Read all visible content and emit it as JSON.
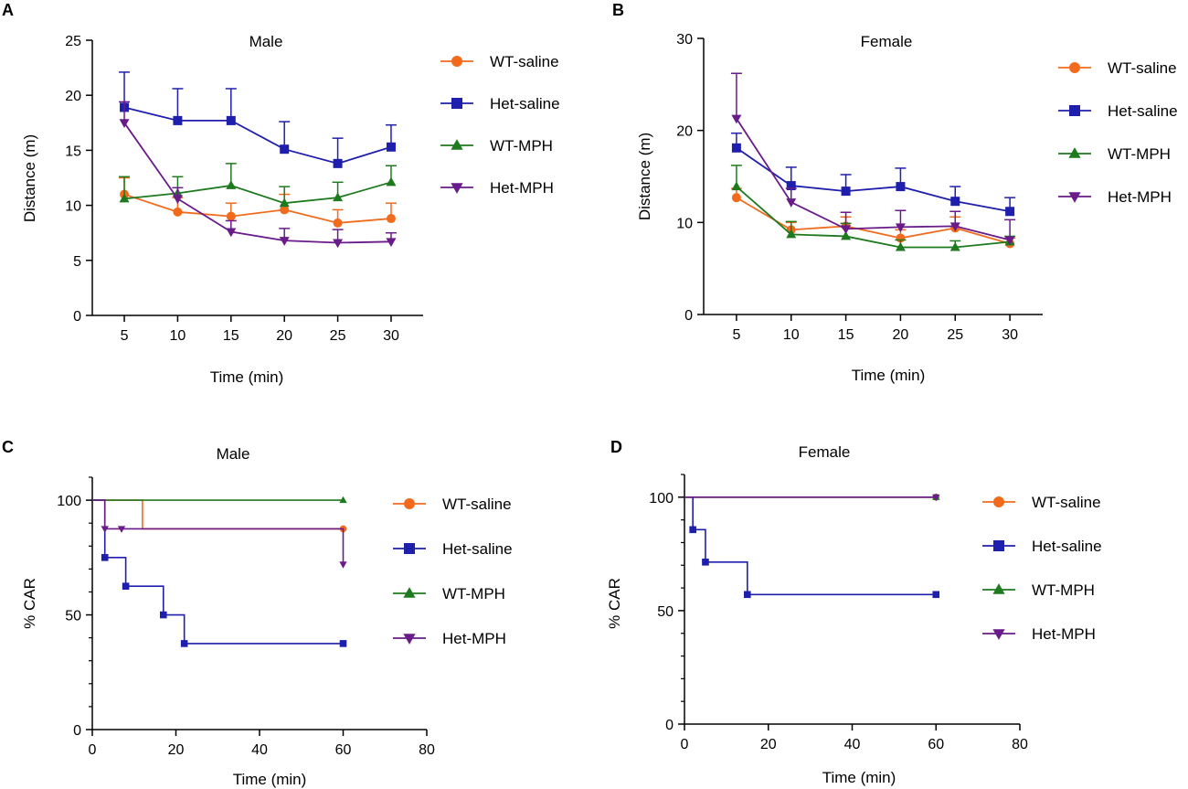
{
  "colors": {
    "WT-saline": "#F26B1D",
    "Het-saline": "#1F1FAE",
    "WT-MPH": "#1E7A1E",
    "Het-MPH": "#6A1B8A",
    "axis": "#000000"
  },
  "chart_data": [
    {
      "panel": "A",
      "type": "line",
      "title": "Male",
      "xlabel": "Time (min)",
      "ylabel": "Distance (m)",
      "x": [
        5,
        10,
        15,
        20,
        25,
        30
      ],
      "xlim": [
        2,
        33
      ],
      "ylim": [
        0,
        25
      ],
      "xticks": [
        5,
        10,
        15,
        20,
        25,
        30
      ],
      "yticks": [
        0,
        5,
        10,
        15,
        20,
        25
      ],
      "error_bars": true,
      "legend_position": "right",
      "series": [
        {
          "name": "WT-saline",
          "marker": "circle",
          "values": [
            11.0,
            9.4,
            9.0,
            9.6,
            8.4,
            8.8
          ],
          "errors": [
            1.5,
            1.3,
            1.2,
            1.4,
            1.2,
            1.4
          ]
        },
        {
          "name": "Het-saline",
          "marker": "square",
          "values": [
            18.9,
            17.7,
            17.7,
            15.1,
            13.8,
            15.3
          ],
          "errors": [
            3.2,
            2.9,
            2.9,
            2.5,
            2.3,
            2.0
          ]
        },
        {
          "name": "WT-MPH",
          "marker": "triangle-up",
          "values": [
            10.6,
            11.1,
            11.8,
            10.2,
            10.7,
            12.1
          ],
          "errors": [
            2.0,
            1.5,
            2.0,
            1.5,
            1.4,
            1.5
          ]
        },
        {
          "name": "Het-MPH",
          "marker": "triangle-down",
          "values": [
            17.5,
            10.6,
            7.6,
            6.8,
            6.6,
            6.7
          ],
          "errors": [
            1.9,
            1.0,
            1.0,
            1.1,
            1.2,
            0.8
          ]
        }
      ]
    },
    {
      "panel": "B",
      "type": "line",
      "title": "Female",
      "xlabel": "Time (min)",
      "ylabel": "Distance (m)",
      "x": [
        5,
        10,
        15,
        20,
        25,
        30
      ],
      "xlim": [
        2,
        33
      ],
      "ylim": [
        0,
        30
      ],
      "xticks": [
        5,
        10,
        15,
        20,
        25,
        30
      ],
      "yticks": [
        0,
        10,
        20,
        30
      ],
      "error_bars": true,
      "legend_position": "right",
      "series": [
        {
          "name": "WT-saline",
          "marker": "circle",
          "values": [
            12.7,
            9.2,
            9.6,
            8.3,
            9.4,
            7.7
          ],
          "errors": [
            1.0,
            0.8,
            1.0,
            0.9,
            1.2,
            0.6
          ]
        },
        {
          "name": "Het-saline",
          "marker": "square",
          "values": [
            18.1,
            14.0,
            13.4,
            13.9,
            12.3,
            11.2
          ],
          "errors": [
            1.6,
            2.0,
            1.8,
            2.0,
            1.6,
            1.5
          ]
        },
        {
          "name": "WT-MPH",
          "marker": "triangle-up",
          "values": [
            13.9,
            8.7,
            8.5,
            7.3,
            7.3,
            7.9
          ],
          "errors": [
            2.3,
            1.4,
            1.4,
            0.8,
            0.7,
            0.6
          ]
        },
        {
          "name": "Het-MPH",
          "marker": "triangle-down",
          "values": [
            21.3,
            12.2,
            9.3,
            9.5,
            9.6,
            8.1
          ],
          "errors": [
            4.9,
            1.5,
            1.8,
            1.8,
            1.6,
            2.2
          ]
        }
      ]
    },
    {
      "panel": "C",
      "type": "step",
      "title": "Male",
      "xlabel": "Time (min)",
      "ylabel": "% CAR",
      "xlim": [
        0,
        80
      ],
      "ylim": [
        0,
        110
      ],
      "xticks": [
        0,
        20,
        40,
        60,
        80
      ],
      "yticks": [
        0,
        50,
        100
      ],
      "legend_position": "right",
      "series": [
        {
          "name": "WT-saline",
          "marker": "circle",
          "x": [
            0,
            12,
            60
          ],
          "values": [
            100,
            87.5,
            87.5
          ],
          "censored": [
            {
              "x": 60,
              "y": 87.5
            }
          ]
        },
        {
          "name": "Het-saline",
          "marker": "square",
          "x": [
            0,
            3,
            8,
            17,
            22,
            60
          ],
          "values": [
            100,
            75,
            62.5,
            50,
            37.5,
            37.5
          ],
          "censored": [
            {
              "x": 3,
              "y": 75
            },
            {
              "x": 8,
              "y": 62.5
            },
            {
              "x": 17,
              "y": 50
            },
            {
              "x": 22,
              "y": 37.5
            },
            {
              "x": 60,
              "y": 37.5
            }
          ]
        },
        {
          "name": "WT-MPH",
          "marker": "triangle-up",
          "x": [
            0,
            60
          ],
          "values": [
            100,
            100
          ],
          "censored": [
            {
              "x": 60,
              "y": 100
            }
          ]
        },
        {
          "name": "Het-MPH",
          "marker": "triangle-down",
          "x": [
            0,
            3,
            60
          ],
          "values": [
            100,
            87.5,
            72
          ],
          "censored": [
            {
              "x": 3,
              "y": 87.5
            },
            {
              "x": 7,
              "y": 87.5
            },
            {
              "x": 60,
              "y": 72
            }
          ]
        }
      ]
    },
    {
      "panel": "D",
      "type": "step",
      "title": "Female",
      "xlabel": "Time (min)",
      "ylabel": "% CAR",
      "xlim": [
        0,
        80
      ],
      "ylim": [
        0,
        110
      ],
      "xticks": [
        0,
        20,
        40,
        60,
        80
      ],
      "yticks": [
        0,
        50,
        100
      ],
      "legend_position": "right",
      "series": [
        {
          "name": "WT-saline",
          "marker": "circle",
          "x": [
            0,
            60
          ],
          "values": [
            100,
            100
          ],
          "censored": [
            {
              "x": 60,
              "y": 100
            }
          ]
        },
        {
          "name": "Het-saline",
          "marker": "square",
          "x": [
            0,
            2,
            5,
            15,
            60
          ],
          "values": [
            100,
            85.7,
            71.4,
            57.1,
            57.1
          ],
          "censored": [
            {
              "x": 2,
              "y": 85.7
            },
            {
              "x": 5,
              "y": 71.4
            },
            {
              "x": 15,
              "y": 57.1
            },
            {
              "x": 60,
              "y": 57.1
            }
          ]
        },
        {
          "name": "WT-MPH",
          "marker": "triangle-up",
          "x": [
            0,
            60
          ],
          "values": [
            100,
            100
          ],
          "censored": [
            {
              "x": 60,
              "y": 100
            }
          ]
        },
        {
          "name": "Het-MPH",
          "marker": "triangle-down",
          "x": [
            0,
            60
          ],
          "values": [
            100,
            100
          ],
          "censored": [
            {
              "x": 60,
              "y": 100
            }
          ]
        }
      ]
    }
  ]
}
